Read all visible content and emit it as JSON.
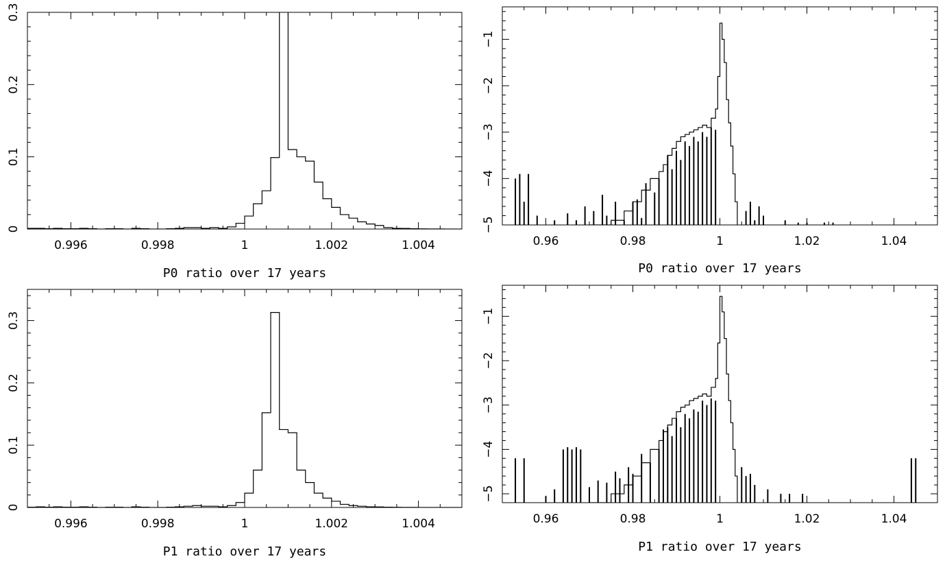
{
  "chart_data": [
    {
      "type": "histogram",
      "id": "p0-linear",
      "xlabel": "P0 ratio over 17 years",
      "ylabel": "",
      "xlim": [
        0.995,
        1.005
      ],
      "ylim": [
        0,
        0.3
      ],
      "yscale": "linear",
      "xticks": [
        0.996,
        0.998,
        1,
        1.002,
        1.004
      ],
      "xtick_labels": [
        "0.996",
        "0.998",
        "1",
        "1.002",
        "1.004"
      ],
      "yticks": [
        0,
        0.1,
        0.2,
        0.3
      ],
      "ytick_labels": [
        "0",
        "0.1",
        "0.2",
        "0.3"
      ],
      "bin_start": 0.995,
      "bin_width": 0.0002,
      "values": [
        0.001,
        0.001,
        0.0005,
        0.001,
        0.0005,
        0.0005,
        0.001,
        0.0005,
        0,
        0.0005,
        0.0005,
        0,
        0.001,
        0.0005,
        0,
        0,
        0.0005,
        0.001,
        0.002,
        0.002,
        0.001,
        0.002,
        0.001,
        0.003,
        0.008,
        0.018,
        0.035,
        0.053,
        0.099,
        0.35,
        0.11,
        0.1,
        0.094,
        0.065,
        0.042,
        0.03,
        0.02,
        0.015,
        0.01,
        0.007,
        0.005,
        0.002,
        0.001,
        0.0008,
        0.0005,
        0.0003,
        0.0002,
        0.0001,
        0,
        0
      ],
      "grid": false,
      "legend": "none"
    },
    {
      "type": "histogram",
      "id": "p0-log",
      "xlabel": "P0 ratio over 17 years",
      "ylabel": "",
      "xlim": [
        0.95,
        1.05
      ],
      "ylim": [
        -5,
        -0.3
      ],
      "yscale": "log10",
      "xticks": [
        0.96,
        0.98,
        1,
        1.02,
        1.04
      ],
      "xtick_labels": [
        "0.96",
        "0.98",
        "1",
        "1.02",
        "1.04"
      ],
      "yticks": [
        -5,
        -4,
        -3,
        -2,
        -1
      ],
      "ytick_labels": [
        "−5",
        "−4",
        "−3",
        "−2",
        "−1"
      ],
      "curve": {
        "x": [
          0.97,
          0.975,
          0.978,
          0.98,
          0.982,
          0.984,
          0.986,
          0.987,
          0.988,
          0.989,
          0.99,
          0.991,
          0.992,
          0.993,
          0.994,
          0.995,
          0.996,
          0.997,
          0.998,
          0.999,
          0.9995,
          1.0,
          1.0005,
          1.001,
          1.0015,
          1.002,
          1.0025,
          1.003,
          1.0035,
          1.004
        ],
        "y": [
          -5,
          -4.9,
          -4.7,
          -4.5,
          -4.25,
          -4.0,
          -3.85,
          -3.7,
          -3.5,
          -3.35,
          -3.2,
          -3.1,
          -3.05,
          -3.0,
          -2.95,
          -2.9,
          -2.85,
          -2.9,
          -2.7,
          -2.5,
          -1.8,
          -0.65,
          -1.0,
          -1.5,
          -2.3,
          -2.8,
          -3.3,
          -3.9,
          -4.5,
          -5
        ]
      },
      "spikes": {
        "x": [
          0.953,
          0.954,
          0.955,
          0.956,
          0.958,
          0.962,
          0.965,
          0.967,
          0.969,
          0.971,
          0.973,
          0.974,
          0.976,
          0.978,
          0.98,
          0.981,
          0.982,
          0.983,
          0.985,
          0.986,
          0.988,
          0.989,
          0.99,
          0.991,
          0.992,
          0.993,
          0.994,
          0.995,
          0.996,
          0.997,
          0.998,
          0.999,
          1.006,
          1.007,
          1.008,
          1.009,
          1.01,
          1.015,
          1.018,
          1.02,
          1.024,
          1.026
        ],
        "y": [
          -4.0,
          -3.9,
          -4.5,
          -3.9,
          -4.8,
          -4.9,
          -4.75,
          -4.9,
          -4.6,
          -4.7,
          -4.35,
          -4.8,
          -4.5,
          -4.9,
          -4.5,
          -4.45,
          -4.85,
          -4.1,
          -4.3,
          -4.0,
          -3.5,
          -3.8,
          -3.4,
          -3.6,
          -3.2,
          -3.3,
          -3.1,
          -3.2,
          -3.0,
          -3.1,
          -2.9,
          -2.95,
          -4.7,
          -4.5,
          -4.9,
          -4.6,
          -4.8,
          -4.9,
          -4.95,
          -4.95,
          -4.95,
          -4.95
        ]
      },
      "grid": false,
      "legend": "none"
    },
    {
      "type": "histogram",
      "id": "p1-linear",
      "xlabel": "P1 ratio over 17 years",
      "ylabel": "",
      "xlim": [
        0.995,
        1.005
      ],
      "ylim": [
        0,
        0.35
      ],
      "yscale": "linear",
      "xticks": [
        0.996,
        0.998,
        1,
        1.002,
        1.004
      ],
      "xtick_labels": [
        "0.996",
        "0.998",
        "1",
        "1.002",
        "1.004"
      ],
      "yticks": [
        0,
        0.1,
        0.2,
        0.3
      ],
      "ytick_labels": [
        "0",
        "0.1",
        "0.2",
        "0.3"
      ],
      "bin_start": 0.995,
      "bin_width": 0.0002,
      "values": [
        0.0005,
        0.001,
        0.0005,
        0.001,
        0.0005,
        0.0005,
        0.001,
        0.0005,
        0,
        0.0005,
        0.0005,
        0,
        0.001,
        0.0005,
        0,
        0,
        0.0005,
        0.001,
        0.002,
        0.003,
        0.002,
        0.002,
        0.001,
        0.003,
        0.008,
        0.023,
        0.06,
        0.152,
        0.313,
        0.125,
        0.12,
        0.06,
        0.04,
        0.023,
        0.015,
        0.01,
        0.005,
        0.003,
        0.002,
        0.001,
        0.0008,
        0.0005,
        0.0003,
        0.0002,
        0.0001,
        0,
        0,
        0,
        0,
        0
      ],
      "grid": false,
      "legend": "none"
    },
    {
      "type": "histogram",
      "id": "p1-log",
      "xlabel": "P1 ratio over 17 years",
      "ylabel": "",
      "xlim": [
        0.95,
        1.05
      ],
      "ylim": [
        -5.2,
        -0.3
      ],
      "yscale": "log10",
      "xticks": [
        0.96,
        0.98,
        1,
        1.02,
        1.04
      ],
      "xtick_labels": [
        "0.96",
        "0.98",
        "1",
        "1.02",
        "1.04"
      ],
      "yticks": [
        -5,
        -4,
        -3,
        -2,
        -1
      ],
      "ytick_labels": [
        "−5",
        "−4",
        "−3",
        "−2",
        "−1"
      ],
      "curve": {
        "x": [
          0.97,
          0.975,
          0.978,
          0.98,
          0.982,
          0.984,
          0.986,
          0.987,
          0.988,
          0.989,
          0.99,
          0.991,
          0.992,
          0.993,
          0.994,
          0.995,
          0.996,
          0.997,
          0.998,
          0.999,
          0.9995,
          1.0,
          1.0005,
          1.001,
          1.0015,
          1.002,
          1.0025,
          1.003,
          1.0035,
          1.004
        ],
        "y": [
          -5.2,
          -5.0,
          -4.8,
          -4.6,
          -4.3,
          -4.0,
          -3.8,
          -3.6,
          -3.45,
          -3.3,
          -3.15,
          -3.05,
          -3.0,
          -2.9,
          -2.85,
          -2.8,
          -2.75,
          -2.8,
          -2.6,
          -2.4,
          -1.6,
          -0.55,
          -0.9,
          -1.5,
          -2.3,
          -2.9,
          -3.4,
          -4.0,
          -4.6,
          -5.2
        ]
      },
      "spikes": {
        "x": [
          0.953,
          0.955,
          0.96,
          0.962,
          0.964,
          0.965,
          0.966,
          0.967,
          0.968,
          0.97,
          0.972,
          0.974,
          0.976,
          0.977,
          0.979,
          0.98,
          0.982,
          0.984,
          0.986,
          0.987,
          0.988,
          0.989,
          0.99,
          0.991,
          0.992,
          0.993,
          0.994,
          0.995,
          0.996,
          0.997,
          0.998,
          0.999,
          1.005,
          1.006,
          1.007,
          1.008,
          1.011,
          1.014,
          1.016,
          1.019,
          1.044,
          1.045
        ],
        "y": [
          -4.2,
          -4.2,
          -5.05,
          -4.9,
          -4.0,
          -3.95,
          -4.0,
          -3.95,
          -4.0,
          -4.85,
          -4.7,
          -4.75,
          -4.5,
          -4.65,
          -4.4,
          -4.55,
          -4.1,
          -4.3,
          -4.0,
          -3.55,
          -3.5,
          -3.7,
          -3.3,
          -3.5,
          -3.2,
          -3.3,
          -3.1,
          -3.15,
          -2.9,
          -3.0,
          -2.85,
          -2.9,
          -4.4,
          -4.6,
          -4.55,
          -4.8,
          -4.9,
          -5.0,
          -5.0,
          -5.0,
          -4.2,
          -4.2
        ]
      },
      "grid": false,
      "legend": "none"
    }
  ]
}
